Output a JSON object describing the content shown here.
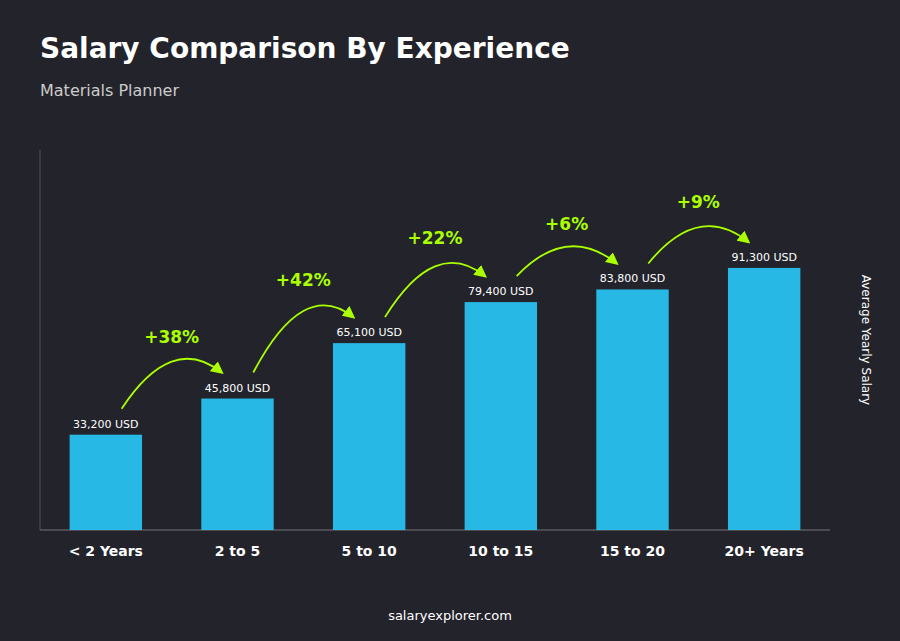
{
  "chart_data": {
    "type": "bar",
    "title": "Salary Comparison By Experience",
    "subtitle": "Materials Planner",
    "ylabel": "Average Yearly Salary",
    "footer": "salaryexplorer.com",
    "categories": [
      "< 2 Years",
      "2 to 5",
      "5 to 10",
      "10 to 15",
      "15 to 20",
      "20+ Years"
    ],
    "values": [
      33200,
      45800,
      65100,
      79400,
      83800,
      91300
    ],
    "value_labels": [
      "33,200 USD",
      "45,800 USD",
      "65,100 USD",
      "79,400 USD",
      "83,800 USD",
      "91,300 USD"
    ],
    "data_labels": true,
    "annotations": [
      "+38%",
      "+42%",
      "+22%",
      "+6%",
      "+9%"
    ],
    "color": "#29C5F6",
    "ylim": [
      0,
      132385
    ],
    "tick_labels": "x",
    "grid": false
  }
}
